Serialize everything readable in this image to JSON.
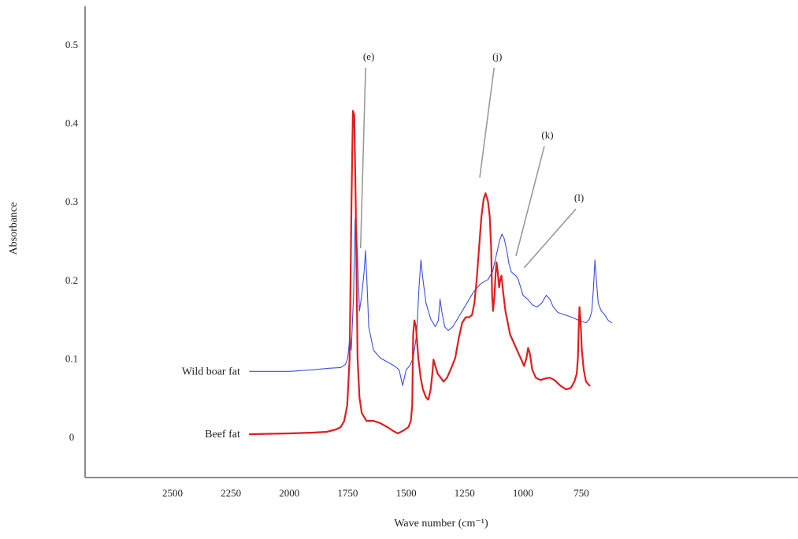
{
  "chart_data": {
    "type": "line",
    "title": "",
    "xlabel": "Wave number (cm⁻¹)",
    "ylabel": "Absorbance",
    "xlim": [
      2750,
      620
    ],
    "ylim": [
      -0.05,
      0.55
    ],
    "x_reversed": true,
    "grid": false,
    "xticks": [
      2500,
      2250,
      2000,
      1750,
      1500,
      1250,
      1000,
      750
    ],
    "xtick_labels": [
      "2500",
      "2250",
      "2000",
      "1750",
      "1500",
      "1250",
      "1000",
      "750"
    ],
    "yticks": [
      0,
      0.1,
      0.2,
      0.3,
      0.4,
      0.5
    ],
    "ytick_labels": [
      "0",
      "0.1",
      "0.2",
      "0.3",
      "0.4",
      "0.5"
    ],
    "series": [
      {
        "name": "Wild boar fat",
        "color": "#3b4fe0",
        "points": [
          [
            2170,
            0.083
          ],
          [
            2000,
            0.083
          ],
          [
            1900,
            0.085
          ],
          [
            1830,
            0.087
          ],
          [
            1780,
            0.088
          ],
          [
            1760,
            0.092
          ],
          [
            1750,
            0.1
          ],
          [
            1740,
            0.13
          ],
          [
            1735,
            0.11
          ],
          [
            1725,
            0.18
          ],
          [
            1718,
            0.278
          ],
          [
            1712,
            0.26
          ],
          [
            1706,
            0.21
          ],
          [
            1700,
            0.16
          ],
          [
            1690,
            0.18
          ],
          [
            1680,
            0.21
          ],
          [
            1674,
            0.237
          ],
          [
            1668,
            0.2
          ],
          [
            1660,
            0.14
          ],
          [
            1640,
            0.11
          ],
          [
            1610,
            0.1
          ],
          [
            1580,
            0.095
          ],
          [
            1550,
            0.09
          ],
          [
            1530,
            0.085
          ],
          [
            1515,
            0.065
          ],
          [
            1500,
            0.085
          ],
          [
            1485,
            0.09
          ],
          [
            1470,
            0.1
          ],
          [
            1455,
            0.13
          ],
          [
            1445,
            0.19
          ],
          [
            1437,
            0.225
          ],
          [
            1428,
            0.2
          ],
          [
            1415,
            0.17
          ],
          [
            1395,
            0.15
          ],
          [
            1375,
            0.14
          ],
          [
            1362,
            0.148
          ],
          [
            1355,
            0.175
          ],
          [
            1348,
            0.16
          ],
          [
            1335,
            0.14
          ],
          [
            1320,
            0.135
          ],
          [
            1300,
            0.14
          ],
          [
            1270,
            0.155
          ],
          [
            1240,
            0.17
          ],
          [
            1210,
            0.185
          ],
          [
            1180,
            0.195
          ],
          [
            1150,
            0.2
          ],
          [
            1130,
            0.21
          ],
          [
            1115,
            0.23
          ],
          [
            1100,
            0.25
          ],
          [
            1090,
            0.258
          ],
          [
            1080,
            0.252
          ],
          [
            1068,
            0.235
          ],
          [
            1060,
            0.22
          ],
          [
            1050,
            0.21
          ],
          [
            1040,
            0.207
          ],
          [
            1030,
            0.205
          ],
          [
            1020,
            0.2
          ],
          [
            1000,
            0.18
          ],
          [
            980,
            0.175
          ],
          [
            960,
            0.168
          ],
          [
            940,
            0.165
          ],
          [
            920,
            0.17
          ],
          [
            900,
            0.18
          ],
          [
            885,
            0.175
          ],
          [
            870,
            0.165
          ],
          [
            850,
            0.158
          ],
          [
            820,
            0.155
          ],
          [
            790,
            0.152
          ],
          [
            760,
            0.148
          ],
          [
            730,
            0.145
          ],
          [
            715,
            0.15
          ],
          [
            705,
            0.16
          ],
          [
            698,
            0.19
          ],
          [
            692,
            0.225
          ],
          [
            686,
            0.2
          ],
          [
            678,
            0.17
          ],
          [
            665,
            0.16
          ],
          [
            650,
            0.155
          ],
          [
            635,
            0.148
          ],
          [
            620,
            0.145
          ]
        ]
      },
      {
        "name": "Beef fat",
        "color": "#e01e1e",
        "points": [
          [
            2170,
            0.003
          ],
          [
            2000,
            0.004
          ],
          [
            1900,
            0.005
          ],
          [
            1840,
            0.006
          ],
          [
            1800,
            0.009
          ],
          [
            1780,
            0.012
          ],
          [
            1765,
            0.02
          ],
          [
            1752,
            0.04
          ],
          [
            1742,
            0.1
          ],
          [
            1734,
            0.3
          ],
          [
            1728,
            0.415
          ],
          [
            1722,
            0.41
          ],
          [
            1716,
            0.3
          ],
          [
            1708,
            0.1
          ],
          [
            1700,
            0.05
          ],
          [
            1690,
            0.03
          ],
          [
            1670,
            0.02
          ],
          [
            1640,
            0.02
          ],
          [
            1610,
            0.017
          ],
          [
            1580,
            0.012
          ],
          [
            1555,
            0.007
          ],
          [
            1535,
            0.004
          ],
          [
            1510,
            0.008
          ],
          [
            1490,
            0.012
          ],
          [
            1480,
            0.02
          ],
          [
            1474,
            0.04
          ],
          [
            1470,
            0.13
          ],
          [
            1465,
            0.148
          ],
          [
            1458,
            0.14
          ],
          [
            1448,
            0.1
          ],
          [
            1438,
            0.075
          ],
          [
            1428,
            0.06
          ],
          [
            1415,
            0.05
          ],
          [
            1405,
            0.047
          ],
          [
            1395,
            0.06
          ],
          [
            1388,
            0.08
          ],
          [
            1383,
            0.098
          ],
          [
            1375,
            0.09
          ],
          [
            1365,
            0.08
          ],
          [
            1352,
            0.075
          ],
          [
            1340,
            0.07
          ],
          [
            1325,
            0.075
          ],
          [
            1310,
            0.085
          ],
          [
            1290,
            0.1
          ],
          [
            1275,
            0.125
          ],
          [
            1260,
            0.145
          ],
          [
            1245,
            0.152
          ],
          [
            1230,
            0.152
          ],
          [
            1218,
            0.155
          ],
          [
            1208,
            0.17
          ],
          [
            1198,
            0.2
          ],
          [
            1188,
            0.24
          ],
          [
            1178,
            0.28
          ],
          [
            1168,
            0.303
          ],
          [
            1160,
            0.31
          ],
          [
            1150,
            0.3
          ],
          [
            1142,
            0.28
          ],
          [
            1136,
            0.24
          ],
          [
            1132,
            0.18
          ],
          [
            1128,
            0.16
          ],
          [
            1122,
            0.18
          ],
          [
            1117,
            0.208
          ],
          [
            1113,
            0.222
          ],
          [
            1108,
            0.21
          ],
          [
            1102,
            0.19
          ],
          [
            1097,
            0.2
          ],
          [
            1092,
            0.205
          ],
          [
            1085,
            0.185
          ],
          [
            1075,
            0.16
          ],
          [
            1065,
            0.145
          ],
          [
            1055,
            0.13
          ],
          [
            1040,
            0.12
          ],
          [
            1025,
            0.11
          ],
          [
            1010,
            0.1
          ],
          [
            995,
            0.09
          ],
          [
            985,
            0.1
          ],
          [
            978,
            0.113
          ],
          [
            970,
            0.105
          ],
          [
            960,
            0.085
          ],
          [
            945,
            0.075
          ],
          [
            925,
            0.072
          ],
          [
            905,
            0.074
          ],
          [
            885,
            0.075
          ],
          [
            865,
            0.072
          ],
          [
            840,
            0.065
          ],
          [
            815,
            0.06
          ],
          [
            795,
            0.062
          ],
          [
            780,
            0.07
          ],
          [
            770,
            0.08
          ],
          [
            765,
            0.1
          ],
          [
            761,
            0.14
          ],
          [
            758,
            0.165
          ],
          [
            754,
            0.15
          ],
          [
            748,
            0.11
          ],
          [
            740,
            0.085
          ],
          [
            730,
            0.07
          ],
          [
            715,
            0.065
          ]
        ]
      }
    ],
    "annotations": [
      {
        "label": "(e)",
        "x": 1660,
        "y": 0.48,
        "target": [
          1695,
          0.24
        ]
      },
      {
        "label": "(j)",
        "x": 1110,
        "y": 0.48,
        "target": [
          1185,
          0.33
        ]
      },
      {
        "label": "(k)",
        "x": 895,
        "y": 0.38,
        "target": [
          1030,
          0.23
        ]
      },
      {
        "label": "(l)",
        "x": 760,
        "y": 0.3,
        "target": [
          995,
          0.215
        ]
      }
    ]
  }
}
